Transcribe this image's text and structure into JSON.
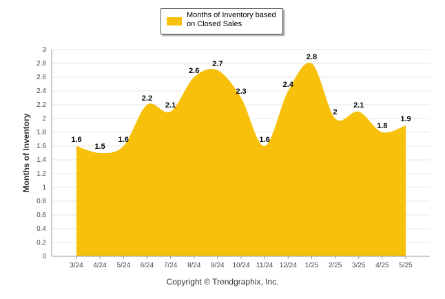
{
  "legend": {
    "label": "Months of Inventory based on Closed Sales"
  },
  "footer": {
    "copyright": "Copyright © Trendgraphix, Inc."
  },
  "colors": {
    "area": "#f7c10b",
    "grid": "#e6e6e6",
    "axis": "#999999"
  },
  "chart_data": {
    "type": "area",
    "title": "",
    "xlabel": "",
    "ylabel": "Months of Inventory",
    "legend_position": "top-center",
    "grid": true,
    "ylim": [
      0,
      3
    ],
    "yticks": [
      "0",
      "0.2",
      "0.4",
      "0.6",
      "0.8",
      "1",
      "1.2",
      "1.4",
      "1.6",
      "1.8",
      "2",
      "2.2",
      "2.4",
      "2.6",
      "2.8",
      "3"
    ],
    "categories": [
      "3/24",
      "4/24",
      "5/24",
      "6/24",
      "7/24",
      "8/24",
      "9/24",
      "10/24",
      "11/24",
      "12/24",
      "1/25",
      "2/25",
      "3/25",
      "4/25",
      "5/25"
    ],
    "series": [
      {
        "name": "Months of Inventory based on Closed Sales",
        "values": [
          1.6,
          1.5,
          1.6,
          2.2,
          2.1,
          2.6,
          2.7,
          2.3,
          1.6,
          2.4,
          2.8,
          2,
          2.1,
          1.8,
          1.9
        ],
        "labels": [
          "1.6",
          "1.5",
          "1.6",
          "2.2",
          "2.1",
          "2.6",
          "2.7",
          "2.3",
          "1.6",
          "2.4",
          "2.8",
          "2",
          "2.1",
          "1.8",
          "1.9"
        ]
      }
    ]
  }
}
